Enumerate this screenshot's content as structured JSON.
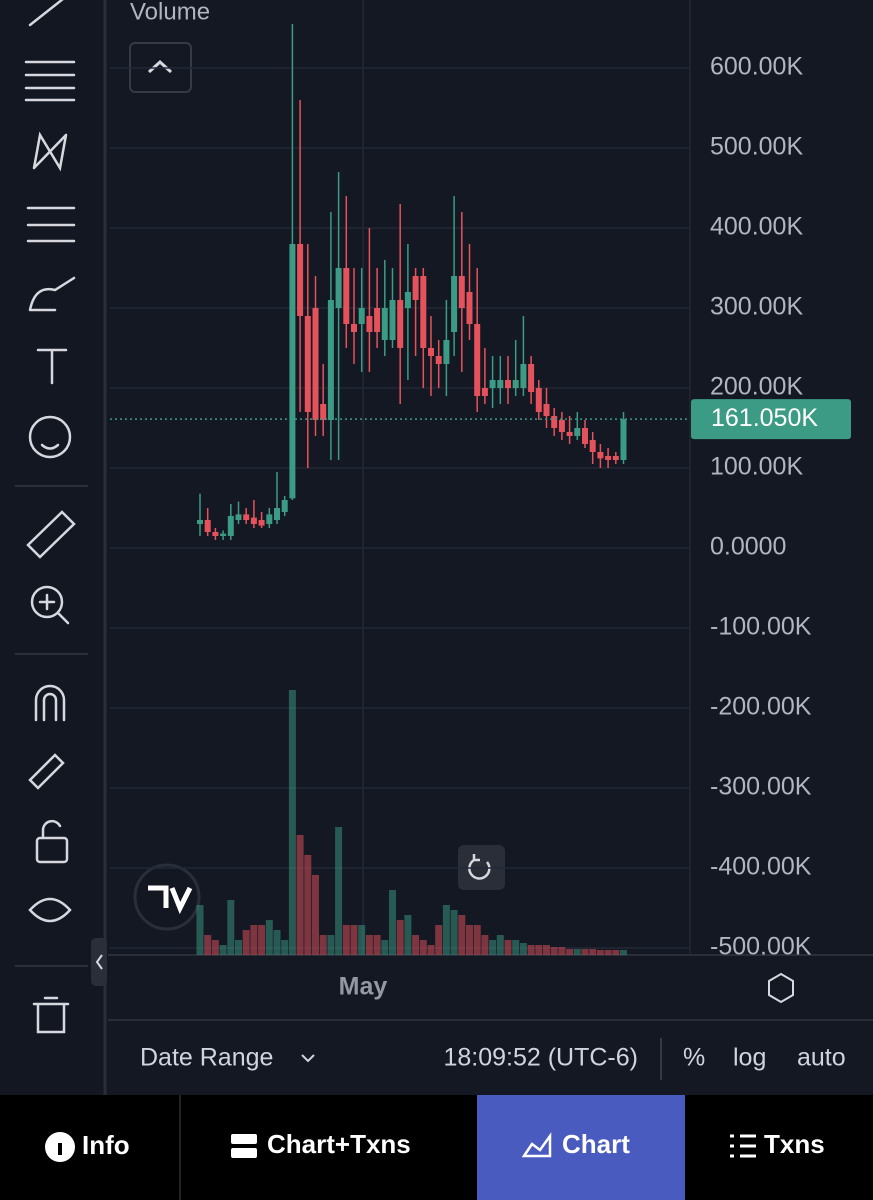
{
  "chart_data": {
    "type": "candlestick",
    "legend_label": "Volume",
    "x_tick_label": "May",
    "ylim": [
      -508.75,
      685
    ],
    "yticks": [
      {
        "value": 600,
        "label": "600.00K"
      },
      {
        "value": 500,
        "label": "500.00K"
      },
      {
        "value": 400,
        "label": "400.00K"
      },
      {
        "value": 300,
        "label": "300.00K"
      },
      {
        "value": 200,
        "label": "200.00K"
      },
      {
        "value": 100,
        "label": "100.00K"
      },
      {
        "value": 0,
        "label": "0.0000"
      },
      {
        "value": -100,
        "label": "-100.00K"
      },
      {
        "value": -200,
        "label": "-200.00K"
      },
      {
        "value": -300,
        "label": "-300.00K"
      },
      {
        "value": -400,
        "label": "-400.00K"
      },
      {
        "value": -500,
        "label": "-500.00K"
      }
    ],
    "grid": true,
    "up_color": "#3b9b85",
    "down_color": "#e5525b",
    "last_price": {
      "value": 161.05,
      "label": "161.050K"
    },
    "open": [
      30,
      35,
      20,
      15,
      15,
      35,
      42,
      38,
      35,
      30,
      35,
      45,
      62,
      380,
      290,
      300,
      180,
      160,
      300,
      350,
      280,
      280,
      290,
      300,
      260,
      260,
      310,
      300,
      340,
      340,
      250,
      240,
      230,
      270,
      340,
      320,
      280,
      200,
      200,
      200,
      210,
      200,
      200,
      230,
      200,
      180,
      165,
      160,
      145,
      140,
      150,
      135,
      120,
      115,
      115,
      110
    ],
    "high": [
      68,
      50,
      25,
      22,
      55,
      58,
      50,
      60,
      45,
      50,
      95,
      65,
      655,
      560,
      380,
      340,
      230,
      420,
      470,
      440,
      350,
      350,
      400,
      350,
      360,
      350,
      430,
      380,
      350,
      350,
      290,
      260,
      310,
      440,
      420,
      380,
      350,
      250,
      240,
      240,
      240,
      260,
      290,
      240,
      210,
      200,
      175,
      170,
      165,
      170,
      160,
      145,
      130,
      125,
      120,
      170
    ],
    "low": [
      15,
      15,
      10,
      10,
      10,
      30,
      30,
      25,
      25,
      25,
      30,
      40,
      60,
      170,
      100,
      140,
      140,
      110,
      110,
      250,
      230,
      220,
      220,
      250,
      240,
      250,
      180,
      210,
      240,
      200,
      190,
      200,
      190,
      240,
      220,
      260,
      170,
      180,
      175,
      180,
      180,
      190,
      190,
      180,
      160,
      150,
      140,
      135,
      130,
      135,
      125,
      105,
      100,
      100,
      105,
      105
    ],
    "close": [
      35,
      20,
      15,
      18,
      40,
      42,
      35,
      30,
      28,
      42,
      50,
      60,
      380,
      290,
      170,
      160,
      160,
      310,
      350,
      280,
      270,
      300,
      270,
      270,
      300,
      310,
      250,
      320,
      310,
      250,
      240,
      230,
      260,
      340,
      300,
      280,
      190,
      190,
      210,
      210,
      200,
      210,
      230,
      195,
      170,
      165,
      150,
      145,
      140,
      150,
      130,
      120,
      112,
      110,
      110,
      161.05
    ],
    "volume": [
      50,
      20,
      15,
      10,
      55,
      15,
      25,
      30,
      30,
      35,
      25,
      15,
      265,
      120,
      100,
      80,
      20,
      20,
      128,
      30,
      30,
      30,
      20,
      20,
      15,
      65,
      35,
      40,
      20,
      15,
      10,
      30,
      50,
      45,
      40,
      30,
      30,
      20,
      15,
      20,
      15,
      15,
      12,
      10,
      10,
      10,
      8,
      8,
      6,
      6,
      6,
      6,
      5,
      5,
      5,
      5
    ]
  },
  "bottom_bar": {
    "date_range": "Date Range",
    "time": "18:09:52 (UTC-6)",
    "percent": "%",
    "log": "log",
    "auto": "auto"
  },
  "tabs": [
    "Info",
    "Chart+Txns",
    "Chart",
    "Txns"
  ]
}
